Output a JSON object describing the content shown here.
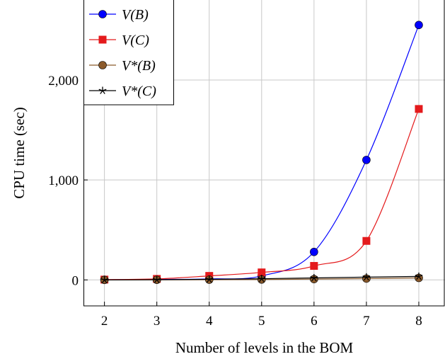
{
  "chart_data": {
    "type": "line",
    "title": "",
    "xlabel": "Number of levels in the BOM",
    "ylabel": "CPU time (sec)",
    "x": [
      2,
      3,
      4,
      5,
      6,
      7,
      8
    ],
    "xlim": [
      1.6,
      8.5
    ],
    "ylim": [
      -260,
      2800
    ],
    "x_ticks": [
      "2",
      "3",
      "4",
      "5",
      "6",
      "7",
      "8"
    ],
    "y_ticks": [
      {
        "value": 0,
        "label": "0"
      },
      {
        "value": 1000,
        "label": "1,000"
      },
      {
        "value": 2000,
        "label": "2,000"
      }
    ],
    "grid": true,
    "smooth": true,
    "legend_position": "top-left",
    "series": [
      {
        "name": "V(B)",
        "color": "#0000ff",
        "marker": "circle",
        "values": [
          2,
          5,
          10,
          40,
          280,
          1200,
          2550
        ]
      },
      {
        "name": "V(C)",
        "color": "#e41a1c",
        "marker": "square",
        "values": [
          3,
          10,
          40,
          75,
          140,
          390,
          1710
        ]
      },
      {
        "name": "V*(B)",
        "color": "#8b5a2b",
        "marker": "circle",
        "values": [
          0,
          1,
          2,
          4,
          8,
          13,
          20
        ]
      },
      {
        "name": "V*(C)",
        "color": "#000000",
        "marker": "star",
        "values": [
          0,
          2,
          6,
          12,
          20,
          28,
          35
        ]
      }
    ]
  }
}
